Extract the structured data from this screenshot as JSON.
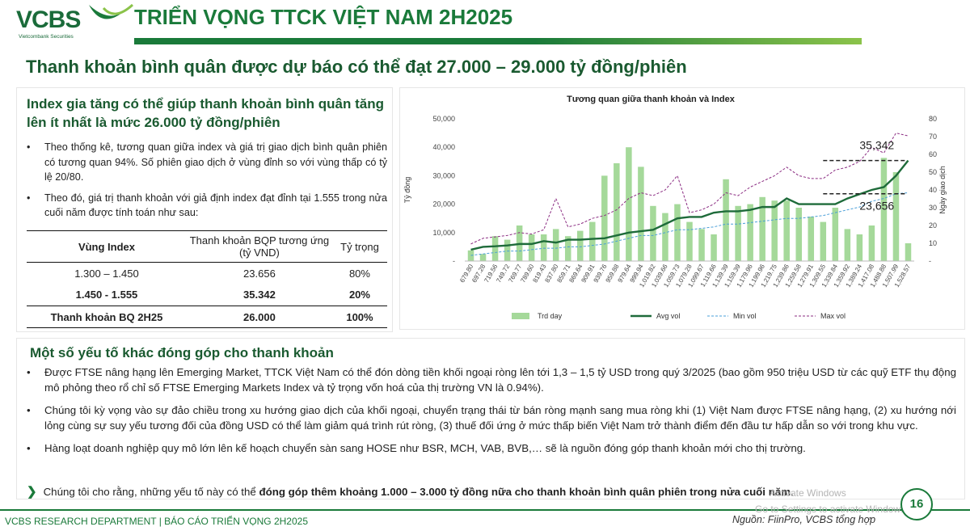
{
  "brand": {
    "logo_text": "VCBS",
    "logo_sub": "Vietcombank Securities"
  },
  "header": {
    "title": "TRIỂN VỌNG TTCK VIỆT NAM 2H2025"
  },
  "subtitle": "Thanh khoản bình quân được dự báo có thể đạt 27.000 – 29.000 tỷ đồng/phiên",
  "left_panel": {
    "title": "Index gia tăng có thể giúp thanh khoản bình quân tăng lên ít nhất là mức 26.000 tỷ đồng/phiên",
    "bullets": [
      "Theo thống kê, tương quan giữa index và giá trị giao dịch bình quân phiên có tương quan 94%. Số phiên giao dịch ở vùng đỉnh so với vùng thấp có tỷ lệ 20/80.",
      "Theo đó, giá trị thanh khoản với giả định index đạt đỉnh tại 1.555 trong nửa cuối năm được tính toán như sau:"
    ],
    "table": {
      "headers": [
        "Vùng Index",
        "Thanh khoản BQP tương ứng (tỷ VND)",
        "Tỷ trọng"
      ],
      "rows": [
        [
          "1.300 – 1.450",
          "23.656",
          "80%"
        ],
        [
          "1.450 - 1.555",
          "35.342",
          "20%"
        ],
        [
          "Thanh khoản BQ 2H25",
          "26.000",
          "100%"
        ]
      ]
    }
  },
  "chart_data": {
    "type": "bar",
    "title": "Tương quan giữa thanh khoản và Index",
    "ylabel_left": "Tỷ đồng",
    "ylabel_right": "Ngày giao dịch",
    "y_left_ticks": [
      "-",
      "10,000",
      "20,000",
      "30,000",
      "40,000",
      "50,000"
    ],
    "y_right_ticks": [
      "-",
      "10",
      "20",
      "30",
      "40",
      "50",
      "60",
      "70",
      "80"
    ],
    "ylim_left": [
      0,
      50000
    ],
    "ylim_right": [
      0,
      80
    ],
    "categories": [
      "679.80",
      "697.28",
      "719.56",
      "749.72",
      "769.77",
      "789.60",
      "819.43",
      "837.80",
      "859.71",
      "869.64",
      "909.91",
      "939.76",
      "959.88",
      "979.64",
      "999.94",
      "1,019.82",
      "1,039.66",
      "1,059.73",
      "1,079.28",
      "1,099.67",
      "1,119.66",
      "1,139.39",
      "1,159.39",
      "1,179.96",
      "1,199.96",
      "1,219.75",
      "1,239.86",
      "1,259.58",
      "1,279.91",
      "1,309.55",
      "1,339.84",
      "1,359.92",
      "1,389.24",
      "1,417.08",
      "1,488.88",
      "1,507.99",
      "1,528.57"
    ],
    "series": [
      {
        "name": "Trd day",
        "type": "bar",
        "axis": "right",
        "values": [
          6,
          4,
          14,
          12,
          20,
          15,
          15,
          18,
          14,
          17,
          22,
          48,
          55,
          64,
          53,
          31,
          27,
          32,
          22,
          18,
          15,
          46,
          31,
          32,
          36,
          34,
          34,
          30,
          25,
          22,
          30,
          18,
          15,
          20,
          58,
          50,
          10
        ]
      },
      {
        "name": "Avg vol",
        "type": "line",
        "axis": "left",
        "values": [
          4000,
          5000,
          5200,
          5500,
          6000,
          6000,
          7000,
          6500,
          7500,
          7500,
          7800,
          8000,
          9000,
          10000,
          10500,
          11000,
          13000,
          15000,
          15500,
          15500,
          17000,
          17500,
          17500,
          18000,
          19000,
          19000,
          22000,
          20000,
          20000,
          20000,
          20000,
          22000,
          23500,
          25000,
          26000,
          30000,
          35342
        ]
      },
      {
        "name": "Min vol",
        "type": "line",
        "axis": "left",
        "values": [
          2000,
          2500,
          3000,
          3500,
          3500,
          4000,
          4500,
          4500,
          5000,
          5000,
          5500,
          6000,
          7000,
          8000,
          9000,
          9000,
          10000,
          11000,
          11000,
          11500,
          12000,
          13000,
          13000,
          13500,
          14000,
          14500,
          15000,
          15000,
          15500,
          16000,
          17000,
          18000,
          19000,
          21000,
          22000,
          23656,
          24000
        ]
      },
      {
        "name": "Max vol",
        "type": "line",
        "axis": "left",
        "values": [
          6000,
          8000,
          8500,
          9000,
          10000,
          9500,
          11000,
          22000,
          12000,
          13000,
          15000,
          16000,
          18000,
          22000,
          24000,
          23000,
          25000,
          30000,
          17000,
          18000,
          20000,
          24000,
          23000,
          26000,
          28000,
          30000,
          33000,
          30000,
          29000,
          29000,
          32000,
          33000,
          35000,
          40000,
          38000,
          45000,
          44000
        ]
      }
    ],
    "annotations": [
      "35,342",
      "23,656"
    ],
    "legend": [
      "Trd day",
      "Avg vol",
      "Min vol",
      "Max vol"
    ],
    "colors": {
      "bar": "#a5d99a",
      "avg": "#1e6b3a",
      "min": "#4a9fd8",
      "max": "#8b2c82"
    }
  },
  "bottom_panel": {
    "title": "Một số yếu tố khác đóng góp cho thanh khoản",
    "bullets": [
      "Được FTSE nâng hạng lên Emerging Market, TTCK Việt Nam có thể đón dòng tiền khối ngoại ròng lên tới 1,3 – 1,5 tỷ USD trong quý 3/2025 (bao gồm 950 triệu USD từ các quỹ ETF thụ động mô phỏng theo rổ chỉ số FTSE Emerging Markets Index và tỷ trọng vốn hoá của thị trường VN là 0.94%).",
      "Chúng tôi kỳ vọng vào sự đảo chiều trong xu hướng giao dịch của khối ngoại, chuyển trạng thái từ bán ròng mạnh sang mua ròng khi (1) Việt Nam được FTSE nâng hạng, (2) xu hướng nới lỏng cùng sự suy yếu tương đối của đồng USD có thể làm giảm quá trình rút ròng, (3) thuế đối ứng ở mức thấp biến Việt Nam trở thành điểm đến đầu tư hấp dẫn so với trong khu vực.",
      "Hàng loạt doanh nghiệp quy mô lớn lên kế hoạch chuyển sàn sang HOSE như BSR, MCH, VAB, BVB,… sẽ là nguồn đóng góp thanh khoản mới cho thị trường."
    ],
    "conclusion_pre": "Chúng tôi cho rằng, những yếu tố này có thể ",
    "conclusion_bold": "đóng góp thêm khoảng 1.000 – 3.000 tỷ đồng nữa cho thanh khoản bình quân phiên trong nửa cuối năm",
    "conclusion_post": "."
  },
  "footer": {
    "left": "VCBS RESEARCH DEPARTMENT | BÁO CÁO TRIỂN VỌNG 2H2025",
    "source": "Nguồn: FiinPro, VCBS tổng hợp",
    "page": "16",
    "watermark_line1": "Activate Windows",
    "watermark_line2": "Go to Settings to activate Windows."
  }
}
